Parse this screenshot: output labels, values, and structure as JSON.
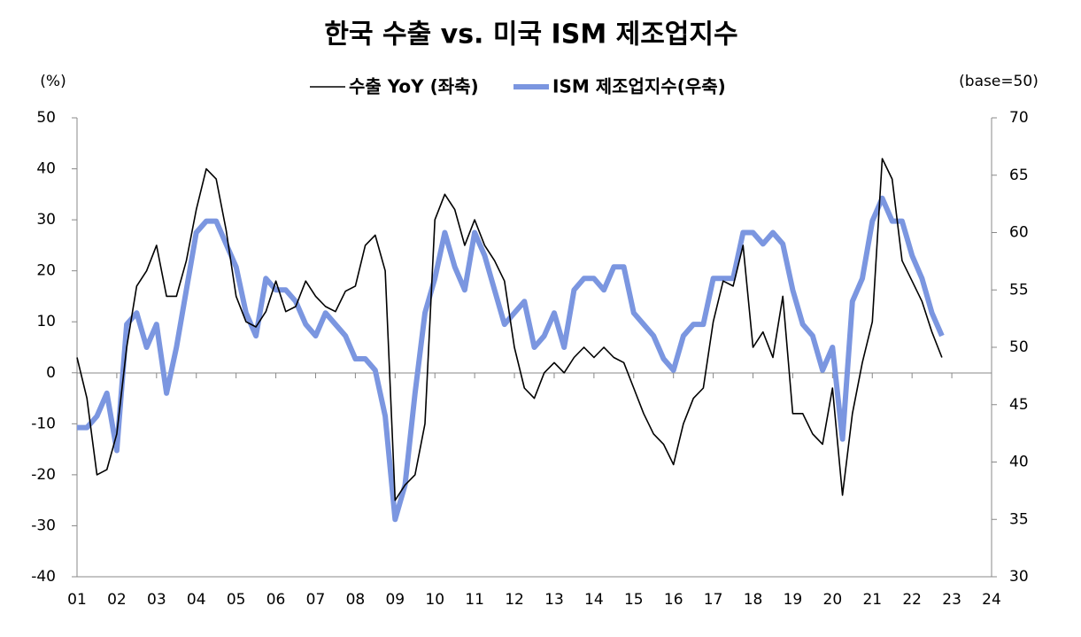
{
  "chart_data": {
    "type": "line",
    "title": "한국 수출 vs. 미국 ISM 제조업지수",
    "y_label": "(%)",
    "y2_label": "(base=50)",
    "x": [
      2001,
      2001.25,
      2001.5,
      2001.75,
      2002,
      2002.25,
      2002.5,
      2002.75,
      2003,
      2003.25,
      2003.5,
      2003.75,
      2004,
      2004.25,
      2004.5,
      2004.75,
      2005,
      2005.25,
      2005.5,
      2005.75,
      2006,
      2006.25,
      2006.5,
      2006.75,
      2007,
      2007.25,
      2007.5,
      2007.75,
      2008,
      2008.25,
      2008.5,
      2008.75,
      2009,
      2009.25,
      2009.5,
      2009.75,
      2010,
      2010.25,
      2010.5,
      2010.75,
      2011,
      2011.25,
      2011.5,
      2011.75,
      2012,
      2012.25,
      2012.5,
      2012.75,
      2013,
      2013.25,
      2013.5,
      2013.75,
      2014,
      2014.25,
      2014.5,
      2014.75,
      2015,
      2015.25,
      2015.5,
      2015.75,
      2016,
      2016.25,
      2016.5,
      2016.75,
      2017,
      2017.25,
      2017.5,
      2017.75,
      2018,
      2018.25,
      2018.5,
      2018.75,
      2019,
      2019.25,
      2019.5,
      2019.75,
      2020,
      2020.25,
      2020.5,
      2020.75,
      2021,
      2021.25,
      2021.5,
      2021.75,
      2022,
      2022.25,
      2022.5,
      2022.75
    ],
    "series": [
      {
        "name": "수출 YoY (좌축)",
        "color": "#000000",
        "values": [
          3,
          -5,
          -20,
          -19,
          -12,
          5,
          17,
          20,
          25,
          15,
          15,
          22,
          32,
          40,
          38,
          28,
          15,
          10,
          9,
          12,
          18,
          12,
          13,
          18,
          15,
          13,
          12,
          16,
          17,
          25,
          27,
          20,
          -25,
          -22,
          -20,
          -10,
          30,
          35,
          32,
          25,
          30,
          25,
          22,
          18,
          5,
          -3,
          -5,
          0,
          2,
          0,
          3,
          5,
          3,
          5,
          3,
          2,
          -3,
          -8,
          -12,
          -14,
          -18,
          -10,
          -5,
          -3,
          10,
          18,
          17,
          25,
          5,
          8,
          3,
          15,
          -8,
          -8,
          -12,
          -14,
          -3,
          -24,
          -8,
          2,
          10,
          42,
          38,
          22,
          18,
          14,
          8,
          3
        ]
      },
      {
        "name": "ISM 제조업지수(우축)",
        "color": "#7b96e0",
        "axis": "y2",
        "values": [
          43,
          43,
          44,
          46,
          41,
          52,
          53,
          50,
          52,
          46,
          50,
          55,
          60,
          61,
          61,
          59,
          57,
          53,
          51,
          56,
          55,
          55,
          54,
          52,
          51,
          53,
          52,
          51,
          49,
          49,
          48,
          44,
          35,
          38,
          46,
          53,
          56,
          60,
          57,
          55,
          60,
          58,
          55,
          52,
          53,
          54,
          50,
          51,
          53,
          50,
          55,
          56,
          56,
          55,
          57,
          57,
          53,
          52,
          51,
          49,
          48,
          51,
          52,
          52,
          56,
          56,
          56,
          60,
          60,
          59,
          60,
          59,
          55,
          52,
          51,
          48,
          50,
          42,
          54,
          56,
          61,
          63,
          61,
          61,
          58,
          56,
          53,
          51
        ]
      }
    ],
    "xlim": [
      2001,
      2024
    ],
    "xticks": [
      {
        "value": 2001,
        "label": "01"
      },
      {
        "value": 2002,
        "label": "02"
      },
      {
        "value": 2003,
        "label": "03"
      },
      {
        "value": 2004,
        "label": "04"
      },
      {
        "value": 2005,
        "label": "05"
      },
      {
        "value": 2006,
        "label": "06"
      },
      {
        "value": 2007,
        "label": "07"
      },
      {
        "value": 2008,
        "label": "08"
      },
      {
        "value": 2009,
        "label": "09"
      },
      {
        "value": 2010,
        "label": "10"
      },
      {
        "value": 2011,
        "label": "11"
      },
      {
        "value": 2012,
        "label": "12"
      },
      {
        "value": 2013,
        "label": "13"
      },
      {
        "value": 2014,
        "label": "14"
      },
      {
        "value": 2015,
        "label": "15"
      },
      {
        "value": 2016,
        "label": "16"
      },
      {
        "value": 2017,
        "label": "17"
      },
      {
        "value": 2018,
        "label": "18"
      },
      {
        "value": 2019,
        "label": "19"
      },
      {
        "value": 2020,
        "label": "20"
      },
      {
        "value": 2021,
        "label": "21"
      },
      {
        "value": 2022,
        "label": "22"
      },
      {
        "value": 2023,
        "label": "23"
      },
      {
        "value": 2024,
        "label": "24"
      }
    ],
    "ylim": [
      -40,
      50
    ],
    "yticks": [
      -40,
      -30,
      -20,
      -10,
      0,
      10,
      20,
      30,
      40,
      50
    ],
    "y2lim": [
      30,
      70
    ],
    "y2ticks": [
      30,
      35,
      40,
      45,
      50,
      55,
      60,
      65,
      70
    ],
    "grid": false
  }
}
